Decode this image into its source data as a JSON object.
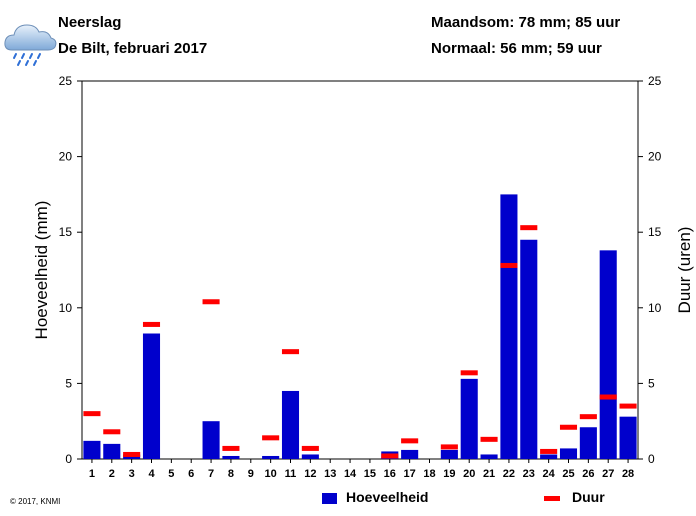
{
  "header": {
    "title": "Neerslag",
    "subtitle": "De Bilt, februari 2017",
    "month_sum": "Maandsom: 78 mm; 85 uur",
    "normal": "Normaal: 56 mm; 59 uur"
  },
  "footer": {
    "copyright": "© 2017, KNMI"
  },
  "colors": {
    "bar": "#0000cc",
    "duration": "#ff0000",
    "axis": "#000000"
  },
  "icon": "rain-cloud-icon",
  "chart_data": {
    "type": "bar",
    "xlabel": "",
    "ylabel_left": "Hoeveelheid (mm)",
    "ylabel_right": "Duur (uren)",
    "ylim_left": [
      0,
      25
    ],
    "ylim_right": [
      0,
      25
    ],
    "yticks": [
      0,
      5,
      10,
      15,
      20,
      25
    ],
    "grid": false,
    "categories": [
      "1",
      "2",
      "3",
      "4",
      "5",
      "6",
      "7",
      "8",
      "9",
      "10",
      "11",
      "12",
      "13",
      "14",
      "15",
      "16",
      "17",
      "18",
      "19",
      "20",
      "21",
      "22",
      "23",
      "24",
      "25",
      "26",
      "27",
      "28"
    ],
    "series": [
      {
        "name": "Hoeveelheid",
        "kind": "bar",
        "values": [
          1.2,
          1.0,
          0.3,
          8.3,
          0,
          0,
          2.5,
          0.2,
          0,
          0.2,
          4.5,
          0.3,
          0,
          0,
          0,
          0.5,
          0.6,
          0,
          0.6,
          5.3,
          0.3,
          17.5,
          14.5,
          0.3,
          0.7,
          2.1,
          13.8,
          2.8
        ]
      },
      {
        "name": "Duur",
        "kind": "marker",
        "values": [
          3.0,
          1.8,
          0.3,
          8.9,
          null,
          null,
          10.4,
          0.7,
          null,
          1.4,
          7.1,
          0.7,
          null,
          null,
          null,
          0.2,
          1.2,
          null,
          0.8,
          5.7,
          1.3,
          12.8,
          15.3,
          0.5,
          2.1,
          2.8,
          4.1,
          3.5
        ]
      }
    ],
    "legend": {
      "position": "bottom",
      "entries": [
        "Hoeveelheid",
        "Duur"
      ]
    }
  }
}
